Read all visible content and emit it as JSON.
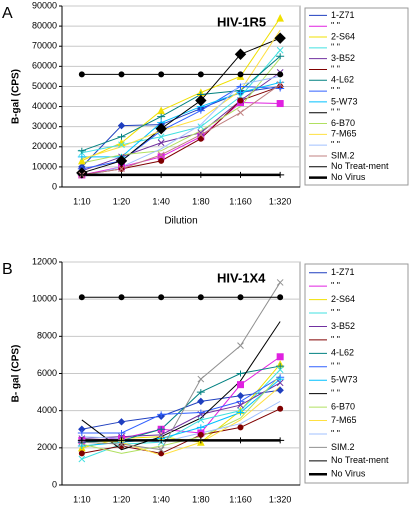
{
  "chart_data": [
    {
      "type": "line",
      "label": "A",
      "title": "HIV-1R5",
      "x_label": "Dilution",
      "y_label": "B-gal (CPS)",
      "categories": [
        "1:10",
        "1:20",
        "1:40",
        "1:80",
        "1:160",
        "1:320"
      ],
      "ylim": [
        0,
        90000
      ],
      "yticks": [
        0,
        10000,
        20000,
        30000,
        40000,
        50000,
        60000,
        70000,
        80000,
        90000
      ],
      "grid": true,
      "series": [
        {
          "name": "1-Z71",
          "color": "#1f3fbf",
          "marker": "diamond",
          "values": [
            10000,
            30500,
            31000,
            39000,
            47000,
            50000
          ]
        },
        {
          "name": "\" \"",
          "color": "#e020e0",
          "marker": "square",
          "values": [
            6000,
            10000,
            15000,
            25000,
            42000,
            41500
          ]
        },
        {
          "name": "2-S64",
          "color": "#f0e000",
          "marker": "triangle",
          "values": [
            13000,
            22000,
            38000,
            47000,
            55000,
            84000
          ]
        },
        {
          "name": "\" \"",
          "color": "#40e0e0",
          "marker": "x",
          "values": [
            17000,
            21000,
            25000,
            30000,
            45000,
            68000
          ]
        },
        {
          "name": "3-B52",
          "color": "#7030a0",
          "marker": "x",
          "values": [
            8000,
            15000,
            22000,
            27000,
            43000,
            57000
          ]
        },
        {
          "name": "\" \"",
          "color": "#800000",
          "marker": "circle",
          "values": [
            6000,
            9000,
            13000,
            24000,
            43000,
            50000
          ]
        },
        {
          "name": "4-L62",
          "color": "#008080",
          "marker": "plus",
          "values": [
            18000,
            25000,
            35000,
            46000,
            48000,
            65000
          ]
        },
        {
          "name": "\" \"",
          "color": "#3060ff",
          "marker": "plus",
          "values": [
            9000,
            13000,
            28000,
            38000,
            50000,
            49000
          ]
        },
        {
          "name": "5-W73",
          "color": "#00c0ff",
          "marker": "plus",
          "values": [
            15000,
            15000,
            32000,
            40000,
            47000,
            52000
          ]
        },
        {
          "name": "\" \"",
          "color": "#000000",
          "marker": "bigdiamond",
          "values": [
            7000,
            13000,
            29000,
            43000,
            66000,
            74000
          ]
        },
        {
          "name": "6-B70",
          "color": "#b0e060",
          "marker": "none",
          "values": [
            12000,
            16000,
            18000,
            28000,
            40000,
            64000
          ]
        },
        {
          "name": "7-M65",
          "color": "#ffe040",
          "marker": "none",
          "values": [
            14000,
            20000,
            28000,
            34000,
            48000,
            78000
          ]
        },
        {
          "name": "\" \"",
          "color": "#a0c0ff",
          "marker": "none",
          "values": [
            5000,
            10000,
            19000,
            31000,
            51000,
            55000
          ]
        },
        {
          "name": "SIM.2",
          "color": "#c08080",
          "marker": "x",
          "values": [
            6000,
            9000,
            16000,
            26000,
            37000,
            51000
          ]
        },
        {
          "name": "No Treat-ment",
          "color": "#000000",
          "marker": "circle",
          "values": [
            56000,
            56000,
            56000,
            56000,
            56000,
            56000
          ]
        },
        {
          "name": "No Virus",
          "color": "#000000",
          "marker": "plus",
          "width": 2.5,
          "values": [
            6000,
            6000,
            6000,
            6000,
            6000,
            6000
          ]
        }
      ]
    },
    {
      "type": "line",
      "label": "B",
      "title": "HIV-1X4",
      "x_label": "Dilution",
      "y_label": "B- gal (CPS)",
      "categories": [
        "1:10",
        "1:20",
        "1:40",
        "1:80",
        "1:160",
        "1:320"
      ],
      "ylim": [
        0,
        12000
      ],
      "yticks": [
        0,
        2000,
        4000,
        6000,
        8000,
        10000,
        12000
      ],
      "grid": true,
      "series": [
        {
          "name": "1-Z71",
          "color": "#1f3fbf",
          "marker": "diamond",
          "values": [
            3000,
            3400,
            3700,
            4500,
            4800,
            5100
          ]
        },
        {
          "name": "\" \"",
          "color": "#e020e0",
          "marker": "square",
          "values": [
            2400,
            2500,
            3000,
            2800,
            5400,
            6900
          ]
        },
        {
          "name": "2-S64",
          "color": "#f0e000",
          "marker": "triangle",
          "values": [
            2000,
            2500,
            2600,
            2300,
            4000,
            6500
          ]
        },
        {
          "name": "\" \"",
          "color": "#40e0e0",
          "marker": "x",
          "values": [
            1400,
            2200,
            2300,
            3500,
            4000,
            6200
          ]
        },
        {
          "name": "3-B52",
          "color": "#7030a0",
          "marker": "x",
          "values": [
            2500,
            2600,
            2700,
            3800,
            4300,
            5500
          ]
        },
        {
          "name": "\" \"",
          "color": "#800000",
          "marker": "circle",
          "values": [
            1700,
            2100,
            1700,
            2700,
            3100,
            4100
          ]
        },
        {
          "name": "4-L62",
          "color": "#008080",
          "marker": "plus",
          "values": [
            2300,
            2400,
            3000,
            5000,
            6000,
            6400
          ]
        },
        {
          "name": "\" \"",
          "color": "#3060ff",
          "marker": "plus",
          "values": [
            2800,
            2800,
            3800,
            3900,
            4500,
            5800
          ]
        },
        {
          "name": "5-W73",
          "color": "#00c0ff",
          "marker": "plus",
          "values": [
            2100,
            2300,
            2500,
            3100,
            3900,
            5700
          ]
        },
        {
          "name": "\" \"",
          "color": "#000000",
          "marker": "none",
          "values": [
            3500,
            1900,
            2600,
            3600,
            5600,
            8800
          ]
        },
        {
          "name": "6-B70",
          "color": "#b0e060",
          "marker": "none",
          "values": [
            2200,
            1700,
            2100,
            2600,
            3600,
            5900
          ]
        },
        {
          "name": "7-M65",
          "color": "#ffe040",
          "marker": "none",
          "values": [
            2400,
            2300,
            1600,
            2300,
            3500,
            5300
          ]
        },
        {
          "name": "\" \"",
          "color": "#a0c0ff",
          "marker": "none",
          "values": [
            2600,
            2500,
            2300,
            2800,
            3300,
            4500
          ]
        },
        {
          "name": "SIM.2",
          "color": "#909090",
          "marker": "x",
          "values": [
            2300,
            2200,
            1900,
            5700,
            7500,
            10900
          ]
        },
        {
          "name": "No Treat-ment",
          "color": "#000000",
          "marker": "circle",
          "values": [
            10100,
            10100,
            10100,
            10100,
            10100,
            10100
          ]
        },
        {
          "name": "No Virus",
          "color": "#000000",
          "marker": "plus",
          "width": 2.5,
          "values": [
            2400,
            2400,
            2400,
            2400,
            2400,
            2400
          ]
        }
      ]
    }
  ]
}
